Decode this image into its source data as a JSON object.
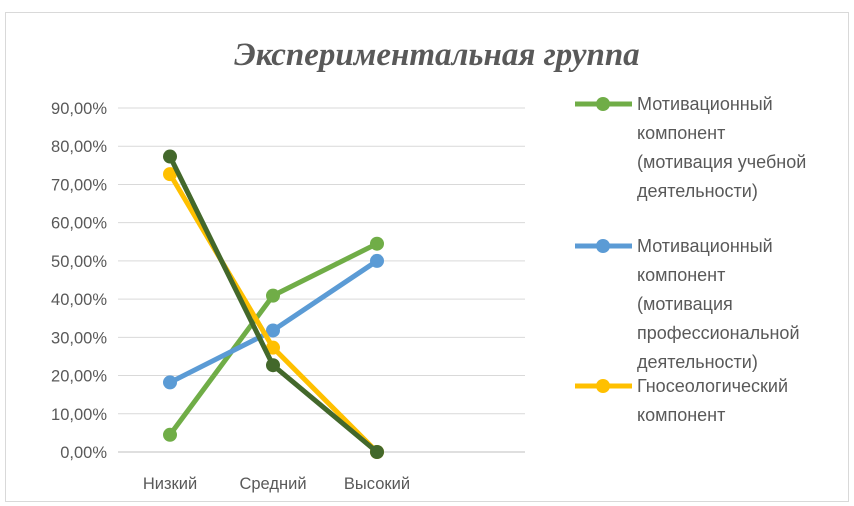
{
  "chart_data": {
    "type": "line",
    "title": "Экспериментальная группа",
    "categories": [
      "Низкий",
      "Средний",
      "Высокий"
    ],
    "yticks": [
      "0,00%",
      "10,00%",
      "20,00%",
      "30,00%",
      "40,00%",
      "50,00%",
      "60,00%",
      "70,00%",
      "80,00%",
      "90,00%"
    ],
    "ylim": [
      0,
      90
    ],
    "grid": true,
    "legend_position": "right",
    "series": [
      {
        "name": "Мотивационный компонент (мотивация учебной деятельности)",
        "legend_lines": [
          "Мотивационный",
          "компонент",
          "(мотивация учебной",
          "деятельности)"
        ],
        "color": "#70ad47",
        "values": [
          4.5,
          40.9,
          54.5
        ]
      },
      {
        "name": "Мотивационный компонент (мотивация профессиональной деятельности)",
        "legend_lines": [
          "Мотивационный",
          "компонент",
          "(мотивация",
          "профессиональной",
          "деятельности)"
        ],
        "color": "#5b9bd5",
        "values": [
          18.2,
          31.8,
          50.0
        ]
      },
      {
        "name": "Гносеологический компонент",
        "legend_lines": [
          "Гносеологический",
          "компонент"
        ],
        "color": "#ffc000",
        "values": [
          72.7,
          27.3,
          0.0
        ]
      },
      {
        "name": "",
        "legend_lines": [],
        "color": "#43682b",
        "values": [
          77.3,
          22.7,
          0.0
        ]
      }
    ]
  }
}
